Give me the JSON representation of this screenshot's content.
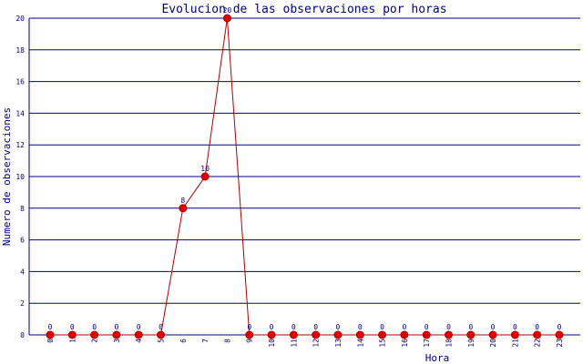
{
  "chart_data": {
    "type": "line",
    "title": "Evolucion de las observaciones por horas",
    "x_label": "Hora",
    "y_label": "Numero de observaciones",
    "categories": [
      "0",
      "1",
      "2",
      "3",
      "4",
      "5",
      "6",
      "7",
      "8",
      "9",
      "10",
      "11",
      "12",
      "13",
      "14",
      "15",
      "16",
      "17",
      "18",
      "19",
      "20",
      "21",
      "22",
      "23"
    ],
    "series": [
      {
        "color": "#b00000",
        "values": [
          0,
          0,
          0,
          0,
          0,
          0,
          8,
          10,
          20,
          0,
          0,
          0,
          0,
          0,
          0,
          0,
          0,
          0,
          0,
          0,
          0,
          0,
          0,
          0
        ]
      }
    ],
    "ylim": [
      0,
      20
    ],
    "yticks": [
      0,
      2,
      4,
      6,
      8,
      10,
      12,
      14,
      16,
      18,
      20
    ],
    "grid": true
  }
}
